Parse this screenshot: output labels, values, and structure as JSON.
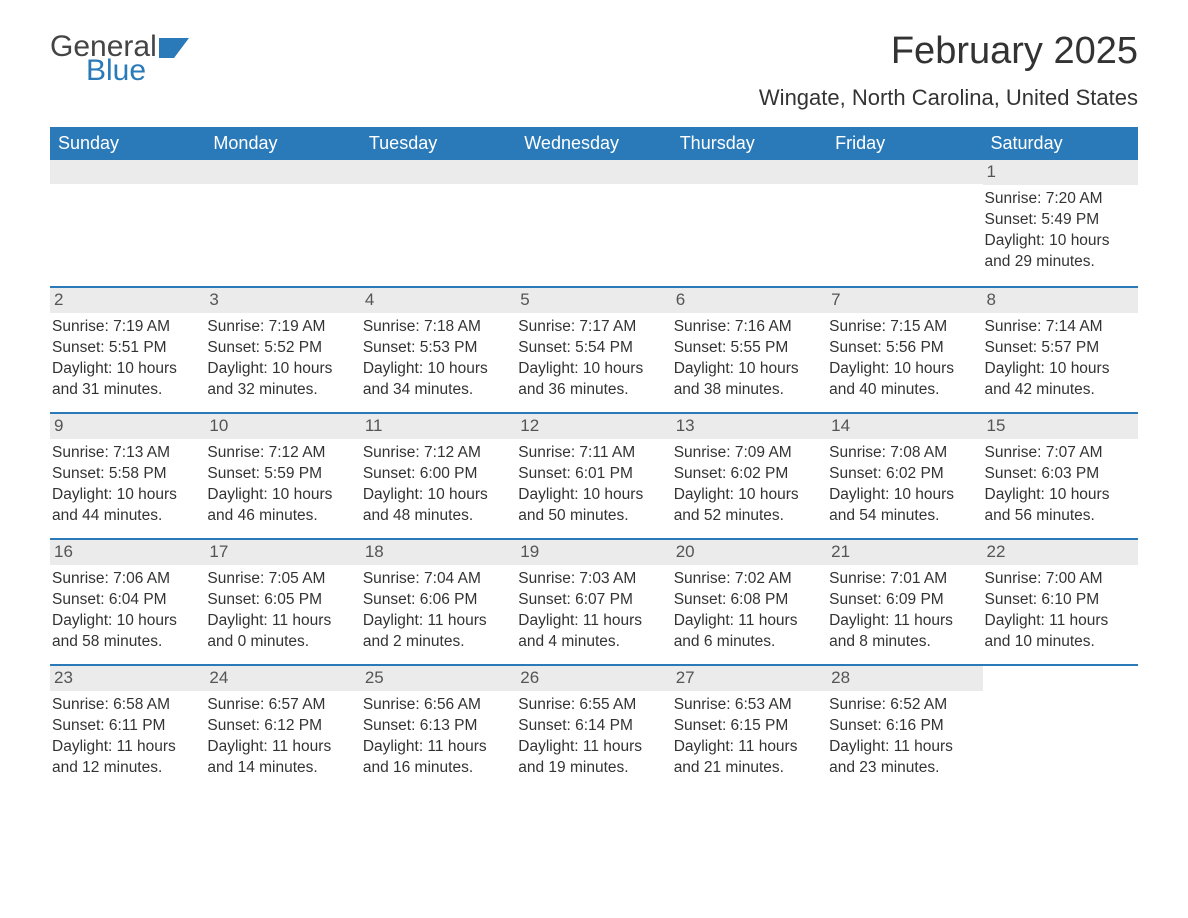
{
  "brand": {
    "part1": "General",
    "part2": "Blue",
    "icon_color": "#2a7ab9"
  },
  "title": "February 2025",
  "location": "Wingate, North Carolina, United States",
  "colors": {
    "header_bg": "#2a7ab9",
    "header_text": "#ffffff",
    "row_border": "#2a7ab9",
    "daynum_bg": "#ebebeb",
    "text": "#333333"
  },
  "weekdays": [
    "Sunday",
    "Monday",
    "Tuesday",
    "Wednesday",
    "Thursday",
    "Friday",
    "Saturday"
  ],
  "weeks": [
    [
      {
        "empty": true
      },
      {
        "empty": true
      },
      {
        "empty": true
      },
      {
        "empty": true
      },
      {
        "empty": true
      },
      {
        "empty": true
      },
      {
        "day": "1",
        "sunrise": "Sunrise: 7:20 AM",
        "sunset": "Sunset: 5:49 PM",
        "daylight": "Daylight: 10 hours and 29 minutes."
      }
    ],
    [
      {
        "day": "2",
        "sunrise": "Sunrise: 7:19 AM",
        "sunset": "Sunset: 5:51 PM",
        "daylight": "Daylight: 10 hours and 31 minutes."
      },
      {
        "day": "3",
        "sunrise": "Sunrise: 7:19 AM",
        "sunset": "Sunset: 5:52 PM",
        "daylight": "Daylight: 10 hours and 32 minutes."
      },
      {
        "day": "4",
        "sunrise": "Sunrise: 7:18 AM",
        "sunset": "Sunset: 5:53 PM",
        "daylight": "Daylight: 10 hours and 34 minutes."
      },
      {
        "day": "5",
        "sunrise": "Sunrise: 7:17 AM",
        "sunset": "Sunset: 5:54 PM",
        "daylight": "Daylight: 10 hours and 36 minutes."
      },
      {
        "day": "6",
        "sunrise": "Sunrise: 7:16 AM",
        "sunset": "Sunset: 5:55 PM",
        "daylight": "Daylight: 10 hours and 38 minutes."
      },
      {
        "day": "7",
        "sunrise": "Sunrise: 7:15 AM",
        "sunset": "Sunset: 5:56 PM",
        "daylight": "Daylight: 10 hours and 40 minutes."
      },
      {
        "day": "8",
        "sunrise": "Sunrise: 7:14 AM",
        "sunset": "Sunset: 5:57 PM",
        "daylight": "Daylight: 10 hours and 42 minutes."
      }
    ],
    [
      {
        "day": "9",
        "sunrise": "Sunrise: 7:13 AM",
        "sunset": "Sunset: 5:58 PM",
        "daylight": "Daylight: 10 hours and 44 minutes."
      },
      {
        "day": "10",
        "sunrise": "Sunrise: 7:12 AM",
        "sunset": "Sunset: 5:59 PM",
        "daylight": "Daylight: 10 hours and 46 minutes."
      },
      {
        "day": "11",
        "sunrise": "Sunrise: 7:12 AM",
        "sunset": "Sunset: 6:00 PM",
        "daylight": "Daylight: 10 hours and 48 minutes."
      },
      {
        "day": "12",
        "sunrise": "Sunrise: 7:11 AM",
        "sunset": "Sunset: 6:01 PM",
        "daylight": "Daylight: 10 hours and 50 minutes."
      },
      {
        "day": "13",
        "sunrise": "Sunrise: 7:09 AM",
        "sunset": "Sunset: 6:02 PM",
        "daylight": "Daylight: 10 hours and 52 minutes."
      },
      {
        "day": "14",
        "sunrise": "Sunrise: 7:08 AM",
        "sunset": "Sunset: 6:02 PM",
        "daylight": "Daylight: 10 hours and 54 minutes."
      },
      {
        "day": "15",
        "sunrise": "Sunrise: 7:07 AM",
        "sunset": "Sunset: 6:03 PM",
        "daylight": "Daylight: 10 hours and 56 minutes."
      }
    ],
    [
      {
        "day": "16",
        "sunrise": "Sunrise: 7:06 AM",
        "sunset": "Sunset: 6:04 PM",
        "daylight": "Daylight: 10 hours and 58 minutes."
      },
      {
        "day": "17",
        "sunrise": "Sunrise: 7:05 AM",
        "sunset": "Sunset: 6:05 PM",
        "daylight": "Daylight: 11 hours and 0 minutes."
      },
      {
        "day": "18",
        "sunrise": "Sunrise: 7:04 AM",
        "sunset": "Sunset: 6:06 PM",
        "daylight": "Daylight: 11 hours and 2 minutes."
      },
      {
        "day": "19",
        "sunrise": "Sunrise: 7:03 AM",
        "sunset": "Sunset: 6:07 PM",
        "daylight": "Daylight: 11 hours and 4 minutes."
      },
      {
        "day": "20",
        "sunrise": "Sunrise: 7:02 AM",
        "sunset": "Sunset: 6:08 PM",
        "daylight": "Daylight: 11 hours and 6 minutes."
      },
      {
        "day": "21",
        "sunrise": "Sunrise: 7:01 AM",
        "sunset": "Sunset: 6:09 PM",
        "daylight": "Daylight: 11 hours and 8 minutes."
      },
      {
        "day": "22",
        "sunrise": "Sunrise: 7:00 AM",
        "sunset": "Sunset: 6:10 PM",
        "daylight": "Daylight: 11 hours and 10 minutes."
      }
    ],
    [
      {
        "day": "23",
        "sunrise": "Sunrise: 6:58 AM",
        "sunset": "Sunset: 6:11 PM",
        "daylight": "Daylight: 11 hours and 12 minutes."
      },
      {
        "day": "24",
        "sunrise": "Sunrise: 6:57 AM",
        "sunset": "Sunset: 6:12 PM",
        "daylight": "Daylight: 11 hours and 14 minutes."
      },
      {
        "day": "25",
        "sunrise": "Sunrise: 6:56 AM",
        "sunset": "Sunset: 6:13 PM",
        "daylight": "Daylight: 11 hours and 16 minutes."
      },
      {
        "day": "26",
        "sunrise": "Sunrise: 6:55 AM",
        "sunset": "Sunset: 6:14 PM",
        "daylight": "Daylight: 11 hours and 19 minutes."
      },
      {
        "day": "27",
        "sunrise": "Sunrise: 6:53 AM",
        "sunset": "Sunset: 6:15 PM",
        "daylight": "Daylight: 11 hours and 21 minutes."
      },
      {
        "day": "28",
        "sunrise": "Sunrise: 6:52 AM",
        "sunset": "Sunset: 6:16 PM",
        "daylight": "Daylight: 11 hours and 23 minutes."
      },
      {
        "empty": true,
        "noBg": true
      }
    ]
  ]
}
